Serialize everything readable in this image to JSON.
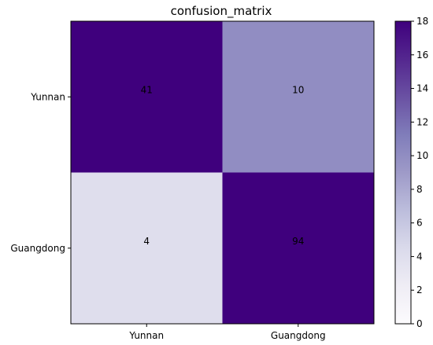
{
  "chart_data": {
    "type": "heatmap",
    "title": "confusion_matrix",
    "rows": [
      "Yunnan",
      "Guangdong"
    ],
    "columns": [
      "Yunnan",
      "Guangdong"
    ],
    "values": [
      [
        41,
        10
      ],
      [
        4,
        94
      ]
    ],
    "cell_labels": [
      [
        "41",
        "10"
      ],
      [
        "4",
        "94"
      ]
    ],
    "colormap": "Purples",
    "colorbar": {
      "range": [
        0,
        18
      ],
      "ticks": [
        "0",
        "2",
        "4",
        "6",
        "8",
        "10",
        "12",
        "14",
        "16",
        "18"
      ]
    }
  }
}
